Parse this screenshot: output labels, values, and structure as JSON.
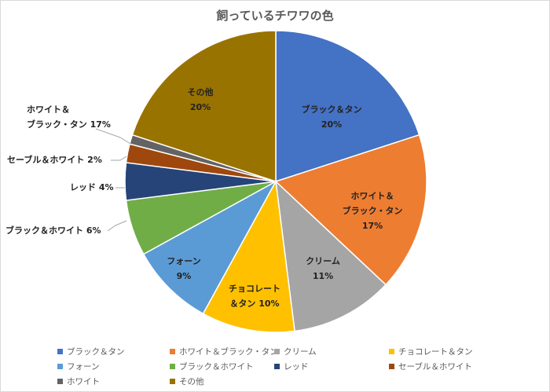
{
  "chart_data": {
    "type": "pie",
    "title": "飼っているチワワの色",
    "legend_position": "bottom",
    "slices": [
      {
        "name": "ブラック＆タン",
        "value": 20,
        "pct_label": "20%",
        "color": "#4472C4"
      },
      {
        "name": "ホワイト＆ブラック・タン",
        "value": 17,
        "pct_label": "17%",
        "color": "#ED7D31"
      },
      {
        "name": "クリーム",
        "value": 11,
        "pct_label": "11%",
        "color": "#A5A5A5"
      },
      {
        "name": "チョコレート＆タン",
        "value": 10,
        "pct_label": "10%",
        "color": "#FFC000"
      },
      {
        "name": "フォーン",
        "value": 9,
        "pct_label": "9%",
        "color": "#5B9BD5"
      },
      {
        "name": "ブラック＆ホワイト",
        "value": 6,
        "pct_label": "6%",
        "color": "#70AD47"
      },
      {
        "name": "レッド",
        "value": 4,
        "pct_label": "4%",
        "color": "#264478"
      },
      {
        "name": "セーブル＆ホワイト",
        "value": 2,
        "pct_label": "2%",
        "color": "#9E480E"
      },
      {
        "name": "ホワイト",
        "value": 1,
        "pct_label": "",
        "color": "#636363"
      },
      {
        "name": "その他",
        "value": 20,
        "pct_label": "20%",
        "color": "#997300"
      }
    ],
    "data_labels": {
      "black_tan": [
        "ブラック＆タン",
        "20%"
      ],
      "white_black_tan": [
        "ホワイト＆",
        "ブラック・タン",
        "17%"
      ],
      "cream": [
        "クリーム",
        "11%"
      ],
      "choco_tan": [
        "チョコレート",
        "＆タン 10%"
      ],
      "fawn": [
        "フォーン",
        "9%"
      ],
      "black_white": [
        "ブラック＆ホワイト 6%"
      ],
      "red": [
        "レッド 4%"
      ],
      "sable_white": [
        "セーブル＆ホワイト 2%"
      ],
      "white": [
        "ホワイト＆",
        "ブラック・タン 17%"
      ],
      "other": [
        "その他",
        "20%"
      ]
    }
  }
}
